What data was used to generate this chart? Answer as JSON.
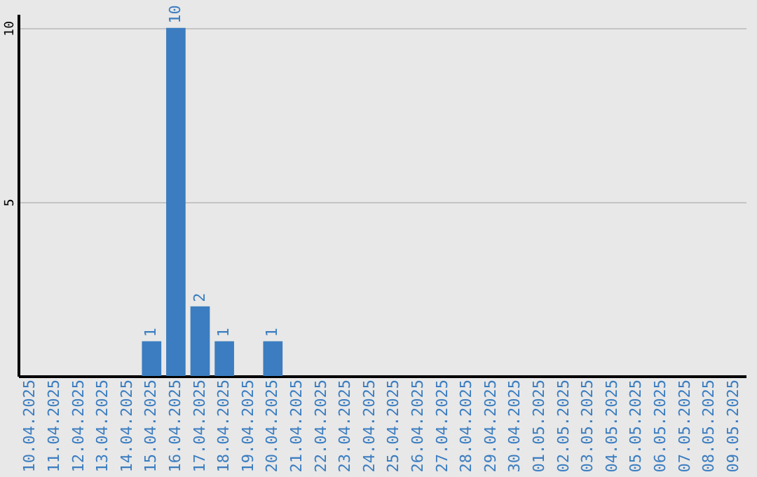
{
  "chart_data": {
    "type": "bar",
    "categories": [
      "10.04.2025",
      "11.04.2025",
      "12.04.2025",
      "13.04.2025",
      "14.04.2025",
      "15.04.2025",
      "16.04.2025",
      "17.04.2025",
      "18.04.2025",
      "19.04.2025",
      "20.04.2025",
      "21.04.2025",
      "22.04.2025",
      "23.04.2025",
      "24.04.2025",
      "25.04.2025",
      "26.04.2025",
      "27.04.2025",
      "28.04.2025",
      "29.04.2025",
      "30.04.2025",
      "01.05.2025",
      "02.05.2025",
      "03.05.2025",
      "04.05.2025",
      "05.05.2025",
      "06.05.2025",
      "07.05.2025",
      "08.05.2025",
      "09.05.2025"
    ],
    "values": [
      0,
      0,
      0,
      0,
      0,
      1,
      10,
      2,
      1,
      0,
      1,
      0,
      0,
      0,
      0,
      0,
      0,
      0,
      0,
      0,
      0,
      0,
      0,
      0,
      0,
      0,
      0,
      0,
      0,
      0
    ],
    "value_labels": [
      null,
      null,
      null,
      null,
      null,
      "1",
      "10",
      "2",
      "1",
      null,
      "1",
      null,
      null,
      null,
      null,
      null,
      null,
      null,
      null,
      null,
      null,
      null,
      null,
      null,
      null,
      null,
      null,
      null,
      null,
      null
    ],
    "color": "#3b7dc0",
    "ylim": [
      0,
      10.4
    ],
    "yticks": [
      {
        "value": 0,
        "label": null
      },
      5,
      10
    ],
    "grid": "y"
  }
}
